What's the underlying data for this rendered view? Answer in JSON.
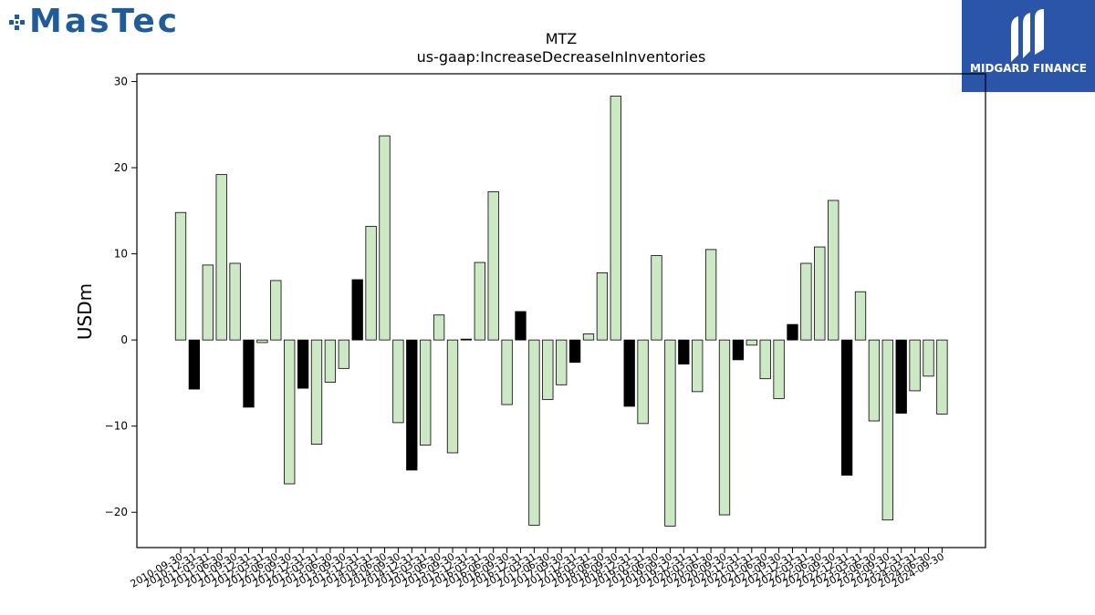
{
  "branding": {
    "left_logo_text": "MasTec",
    "left_logo_icon": "pixel-squares-icon",
    "left_logo_color": "#1f5c99",
    "right_logo_text": "MIDGARD FINANCE",
    "right_logo_icon": "stylized-m-icon",
    "right_logo_bg": "#2a55a8"
  },
  "chart_data": {
    "type": "bar",
    "title": "MTZ",
    "subtitle": "us-gaap:IncreaseDecreaseInInventories",
    "xlabel": "",
    "ylabel": "USDm",
    "ylim": [
      -24.1,
      30.9
    ],
    "yticks": [
      -20,
      -10,
      0,
      10,
      20,
      30
    ],
    "ytick_labels": [
      "−20",
      "−10",
      "0",
      "10",
      "20",
      "30"
    ],
    "grid": false,
    "legend": "none",
    "colors": {
      "quarterly": "#cce8c4",
      "annual": "#000000",
      "edge": "#000000"
    },
    "categories": [
      "2010-09-30",
      "2010-12-31",
      "2011-03-31",
      "2011-06-30",
      "2011-09-30",
      "2011-12-31",
      "2012-03-31",
      "2012-06-30",
      "2012-09-30",
      "2012-12-31",
      "2013-03-31",
      "2013-06-30",
      "2013-09-30",
      "2013-12-31",
      "2014-03-31",
      "2014-06-30",
      "2014-09-30",
      "2014-12-31",
      "2015-03-31",
      "2015-06-30",
      "2015-09-30",
      "2015-12-31",
      "2016-03-31",
      "2016-06-30",
      "2016-09-30",
      "2016-12-31",
      "2017-03-31",
      "2017-06-30",
      "2017-09-30",
      "2017-12-31",
      "2018-03-31",
      "2018-06-30",
      "2018-09-30",
      "2018-12-31",
      "2019-03-31",
      "2019-06-30",
      "2019-09-30",
      "2019-12-31",
      "2020-03-31",
      "2020-06-30",
      "2020-09-30",
      "2020-12-31",
      "2021-03-31",
      "2021-06-30",
      "2021-09-30",
      "2021-12-31",
      "2022-03-31",
      "2022-06-30",
      "2022-09-30",
      "2022-12-31",
      "2023-03-31",
      "2023-06-30",
      "2023-09-30",
      "2023-12-31",
      "2024-03-31",
      "2024-06-30",
      "2024-09-30"
    ],
    "values": [
      14.8,
      -5.7,
      8.7,
      19.2,
      8.9,
      -7.8,
      -0.3,
      6.9,
      -16.7,
      -5.6,
      -12.1,
      -4.9,
      -3.3,
      7.0,
      13.2,
      23.7,
      -9.6,
      -15.1,
      -12.2,
      2.9,
      -13.1,
      0.1,
      9.0,
      17.2,
      -7.5,
      3.3,
      -21.5,
      -6.9,
      -5.2,
      -2.6,
      0.7,
      7.8,
      28.3,
      -7.7,
      -9.7,
      9.8,
      -21.6,
      -2.8,
      -6.0,
      10.5,
      -20.3,
      -2.3,
      -0.6,
      -4.5,
      -6.8,
      1.8,
      8.9,
      10.8,
      16.2,
      -15.7,
      5.6,
      -9.4,
      -20.9,
      -8.5,
      -5.9,
      -4.2,
      -8.6
    ],
    "highlight": [
      false,
      true,
      false,
      false,
      false,
      true,
      false,
      false,
      false,
      true,
      false,
      false,
      false,
      true,
      false,
      false,
      false,
      true,
      false,
      false,
      false,
      true,
      false,
      false,
      false,
      true,
      false,
      false,
      false,
      true,
      false,
      false,
      false,
      true,
      false,
      false,
      false,
      true,
      false,
      false,
      false,
      true,
      false,
      false,
      false,
      true,
      false,
      false,
      false,
      true,
      false,
      false,
      false,
      true,
      false,
      false,
      false
    ]
  }
}
